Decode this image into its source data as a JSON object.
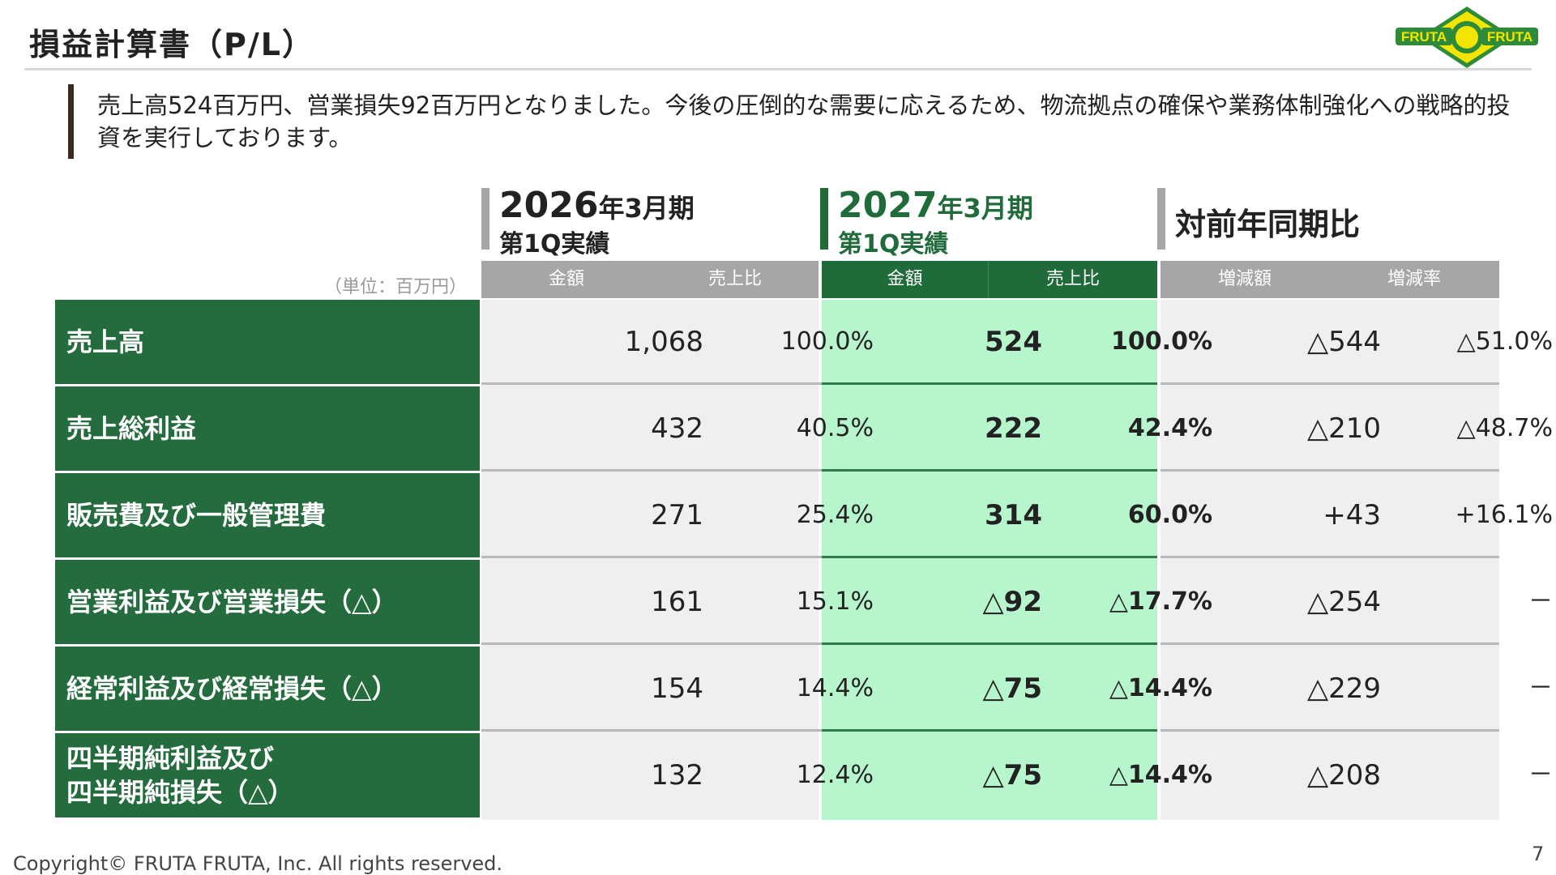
{
  "title": "損益計算書（P/L）",
  "lead_text": "売上高524百万円、営業損失92百万円となりました。今後の圧倒的な需要に応えるため、物流拠点の確保や業務体制強化への戦略的投資を実行しております。",
  "logo": {
    "text_left": "FRUTA",
    "text_right": "FRUTA",
    "colors": {
      "outer": "#2e8b3a",
      "inner": "#f2e600"
    }
  },
  "periods": [
    {
      "year": "2026",
      "suffix": "年3月期",
      "quarter": "第1Q実績"
    },
    {
      "year": "2027",
      "suffix": "年3月期",
      "quarter": "第1Q実績"
    },
    {
      "label": "対前年同期比"
    }
  ],
  "unit": "（単位：百万円）",
  "headers": {
    "prev": [
      "金額",
      "売上比"
    ],
    "curr": [
      "金額",
      "売上比"
    ],
    "diff": [
      "増減額",
      "増減率"
    ]
  },
  "rows": [
    {
      "label": "売上高",
      "prev_amount": "1,068",
      "prev_ratio": "100.0%",
      "curr_amount": "524",
      "curr_ratio": "100.0%",
      "diff_amount": "△544",
      "diff_rate": "△51.0%"
    },
    {
      "label": "売上総利益",
      "prev_amount": "432",
      "prev_ratio": "40.5%",
      "curr_amount": "222",
      "curr_ratio": "42.4%",
      "diff_amount": "△210",
      "diff_rate": "△48.7%"
    },
    {
      "label": "販売費及び一般管理費",
      "prev_amount": "271",
      "prev_ratio": "25.4%",
      "curr_amount": "314",
      "curr_ratio": "60.0%",
      "diff_amount": "+43",
      "diff_rate": "+16.1%"
    },
    {
      "label": "営業利益及び営業損失（△）",
      "prev_amount": "161",
      "prev_ratio": "15.1%",
      "curr_amount": "△92",
      "curr_ratio": "△17.7%",
      "diff_amount": "△254",
      "diff_rate": "－"
    },
    {
      "label": "経常利益及び経常損失（△）",
      "prev_amount": "154",
      "prev_ratio": "14.4%",
      "curr_amount": "△75",
      "curr_ratio": "△14.4%",
      "diff_amount": "△229",
      "diff_rate": "－"
    },
    {
      "label": "四半期純利益及び\n四半期純損失（△）",
      "prev_amount": "132",
      "prev_ratio": "12.4%",
      "curr_amount": "△75",
      "curr_ratio": "△14.4%",
      "diff_amount": "△208",
      "diff_rate": "－"
    }
  ],
  "footer": {
    "copyright": "Copyright© FRUTA FRUTA, Inc. All rights reserved.",
    "page_number": "7"
  }
}
